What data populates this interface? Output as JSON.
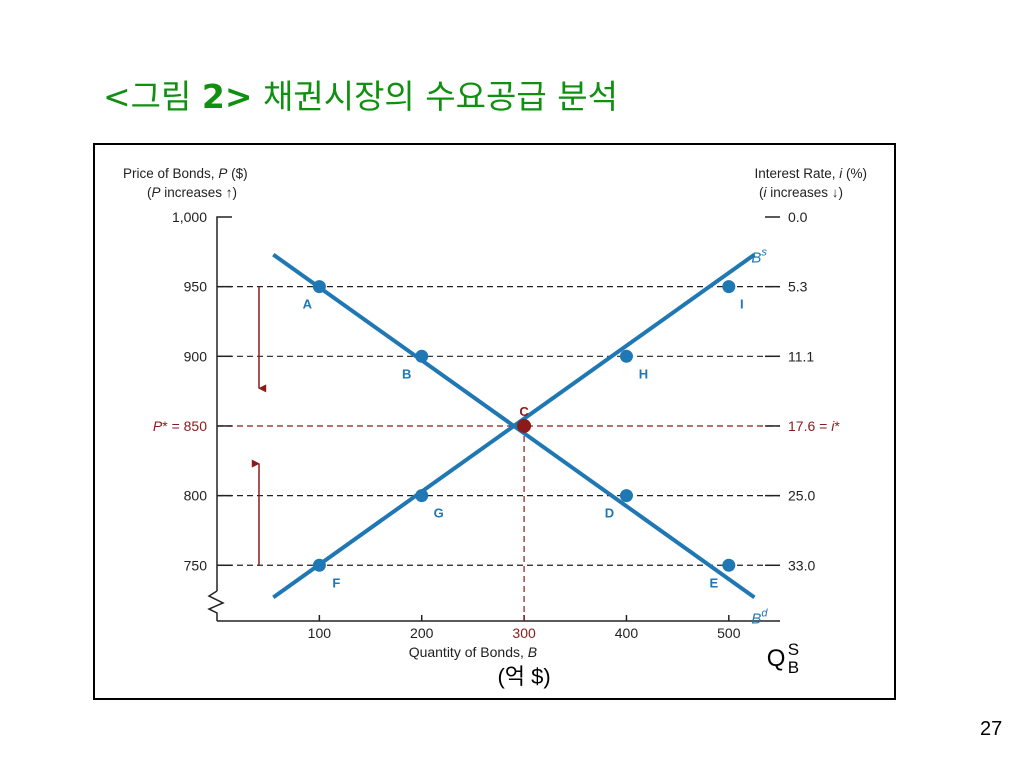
{
  "slide": {
    "title_open": "<그림 ",
    "title_number": "2>",
    "title_rest": " 채권시장의 수요공급 분석",
    "page_number": "27"
  },
  "colors": {
    "title": "#109010",
    "curve": "#1f77b4",
    "equilibrium": "#8b1a1a",
    "axis": "#222222"
  },
  "chart_data": {
    "type": "line",
    "left_axis": {
      "label_line1": "Price of Bonds, P ($)",
      "label_line2": "(P increases ↑)"
    },
    "right_axis": {
      "label_line1": "Interest Rate, i (%)",
      "label_line2": "(i increases ↓)"
    },
    "xlabel": "Quantity of Bonds, B",
    "xlabel_extra": "(억 $)",
    "supply_label": "Q",
    "supply_sup": "S",
    "supply_sub": "B",
    "xlim": [
      0,
      550
    ],
    "ylim": [
      710,
      1000
    ],
    "x_ticks": [
      {
        "value": 100,
        "label": "100"
      },
      {
        "value": 200,
        "label": "200"
      },
      {
        "value": 300,
        "label": "300",
        "highlight": true
      },
      {
        "value": 400,
        "label": "400"
      },
      {
        "value": 500,
        "label": "500"
      }
    ],
    "y_ticks": [
      {
        "value": 1000,
        "left": "1,000",
        "right": "0.0"
      },
      {
        "value": 950,
        "left": "950",
        "right": "5.3"
      },
      {
        "value": 900,
        "left": "900",
        "right": "11.1"
      },
      {
        "value": 850,
        "left": "P* = 850",
        "right": "17.6 = i*",
        "highlight": true
      },
      {
        "value": 800,
        "left": "800",
        "right": "25.0"
      },
      {
        "value": 750,
        "left": "750",
        "right": "33.0"
      }
    ],
    "series": [
      {
        "name": "Bs",
        "name_main": "B",
        "name_sup": "s",
        "line": [
          [
            55,
            727
          ],
          [
            525,
            973
          ]
        ],
        "points": [
          {
            "label": "F",
            "x": 100,
            "y": 750
          },
          {
            "label": "G",
            "x": 200,
            "y": 800
          },
          {
            "label": "H",
            "x": 400,
            "y": 900
          },
          {
            "label": "I",
            "x": 500,
            "y": 950
          }
        ]
      },
      {
        "name": "Bd",
        "name_main": "B",
        "name_sup": "d",
        "line": [
          [
            55,
            973
          ],
          [
            525,
            727
          ]
        ],
        "points": [
          {
            "label": "A",
            "x": 100,
            "y": 950
          },
          {
            "label": "B",
            "x": 200,
            "y": 900
          },
          {
            "label": "D",
            "x": 400,
            "y": 800
          },
          {
            "label": "E",
            "x": 500,
            "y": 750
          }
        ]
      }
    ],
    "equilibrium": {
      "label": "C",
      "x": 300,
      "y": 850
    },
    "arrows": [
      {
        "direction": "down",
        "from": 950,
        "to": 877
      },
      {
        "direction": "up",
        "from": 750,
        "to": 823
      }
    ]
  }
}
